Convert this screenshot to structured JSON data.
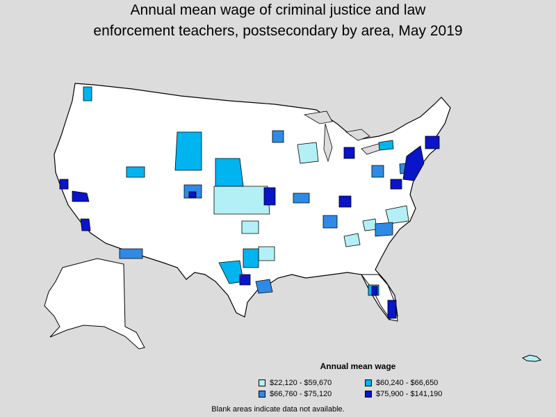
{
  "title": {
    "line1": "Annual mean wage of criminal justice and law",
    "line2": "enforcement teachers, postsecondary by area, May 2019"
  },
  "legend": {
    "title": "Annual mean wage",
    "items": [
      {
        "label": "$22,120 - $59,670",
        "color": "#b3f0f5"
      },
      {
        "label": "$60,240 - $66,650",
        "color": "#00b4f0"
      },
      {
        "label": "$66,760 - $75,120",
        "color": "#2f8ae6"
      },
      {
        "label": "$75,900 - $141,190",
        "color": "#0a14c8"
      }
    ]
  },
  "footnote": "Blank areas indicate data not available."
}
